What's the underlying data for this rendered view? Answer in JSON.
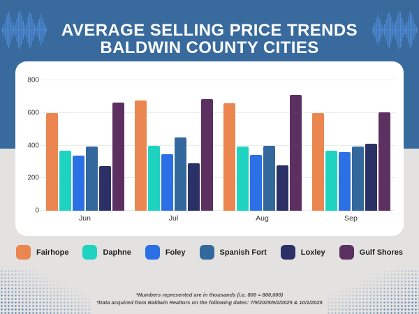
{
  "header": {
    "title_line1": "AVERAGE SELLING PRICE TRENDS",
    "title_line2": "BALDWIN COUNTY CITIES"
  },
  "chart_data": {
    "type": "bar",
    "title": "AVERAGE SELLING PRICE TRENDS BALDWIN COUNTY CITIES",
    "categories": [
      "Jun",
      "Jul",
      "Aug",
      "Sep"
    ],
    "series": [
      {
        "name": "Fairhope",
        "color": "#EC8650",
        "values": [
          600,
          675,
          660,
          597
        ]
      },
      {
        "name": "Daphne",
        "color": "#1FD3C1",
        "values": [
          370,
          400,
          395,
          370
        ]
      },
      {
        "name": "Foley",
        "color": "#2B70E4",
        "values": [
          340,
          348,
          344,
          360
        ]
      },
      {
        "name": "Spanish Fort",
        "color": "#33689D",
        "values": [
          395,
          450,
          398,
          392
        ]
      },
      {
        "name": "Loxley",
        "color": "#2B3067",
        "values": [
          275,
          293,
          280,
          410
        ]
      },
      {
        "name": "Gulf Shores",
        "color": "#5C3061",
        "values": [
          665,
          683,
          710,
          602
        ]
      }
    ],
    "ylim": [
      0,
      800
    ],
    "yticks": [
      0,
      200,
      400,
      600,
      800
    ],
    "grid": true,
    "legend_position": "bottom"
  },
  "footnotes": {
    "line1": "*Numbers represented are in thousands (i.e. 800 = 800,000)",
    "line2": "*Data acquired from Baldwin Realtors on the following dates: 7/9/2025/9/2/2025 & 10/1/2025"
  },
  "colors": {
    "header_background": "#386A9E",
    "page_background": "#E3E2E1",
    "card_background": "#FFFFFF",
    "waveform_accent": "#4E8AD4",
    "title_text": "#FFFFFF"
  }
}
